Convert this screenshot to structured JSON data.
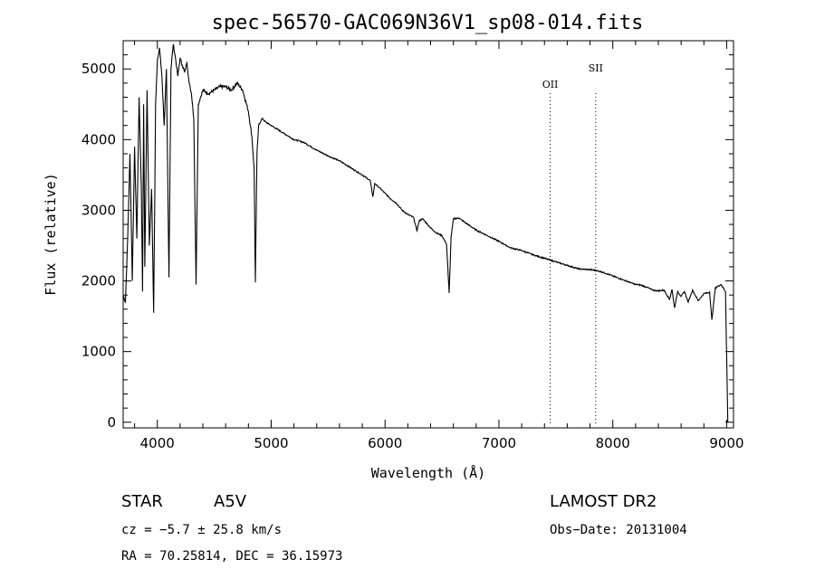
{
  "chart_data": {
    "type": "line",
    "title": "spec-56570-GAC069N36V1_sp08-014.fits",
    "xlabel": "Wavelength (Å)",
    "ylabel": "Flux (relative)",
    "xlim": [
      3700,
      9060
    ],
    "ylim": [
      -80,
      5400
    ],
    "xticks": [
      4000,
      5000,
      6000,
      7000,
      8000,
      9000
    ],
    "yticks": [
      0,
      1000,
      2000,
      3000,
      4000,
      5000
    ],
    "grid": false,
    "series": [
      {
        "x": [
          3700,
          3720,
          3740,
          3760,
          3780,
          3800,
          3820,
          3840,
          3860,
          3870,
          3880,
          3890,
          3910,
          3930,
          3950,
          3968,
          3985,
          4000,
          4020,
          4040,
          4060,
          4080,
          4102,
          4120,
          4140,
          4160,
          4180,
          4200,
          4220,
          4240,
          4260,
          4280,
          4300,
          4320,
          4340,
          4360,
          4380,
          4400,
          4450,
          4500,
          4550,
          4600,
          4650,
          4700,
          4750,
          4800,
          4830,
          4850,
          4861,
          4875,
          4890,
          4920,
          4950,
          5000,
          5050,
          5100,
          5150,
          5200,
          5250,
          5300,
          5400,
          5500,
          5600,
          5700,
          5800,
          5870,
          5893,
          5910,
          5950,
          6000,
          6050,
          6100,
          6150,
          6200,
          6250,
          6280,
          6300,
          6330,
          6400,
          6450,
          6500,
          6540,
          6563,
          6580,
          6600,
          6650,
          6700,
          6800,
          6900,
          7000,
          7100,
          7200,
          7300,
          7400,
          7500,
          7600,
          7700,
          7800,
          7850,
          7900,
          8000,
          8100,
          8200,
          8250,
          8300,
          8350,
          8400,
          8450,
          8498,
          8520,
          8542,
          8570,
          8600,
          8630,
          8662,
          8700,
          8750,
          8800,
          8850,
          8870,
          8900,
          8950,
          8990,
          9000,
          9010
        ],
        "y": [
          1800,
          1700,
          2600,
          3800,
          2000,
          3900,
          2600,
          4600,
          3300,
          1850,
          4500,
          2200,
          4700,
          2500,
          3300,
          1550,
          4500,
          5100,
          5300,
          4900,
          4200,
          5000,
          2050,
          5000,
          5350,
          5150,
          4900,
          5150,
          5050,
          4950,
          5100,
          4800,
          4650,
          4300,
          1950,
          4500,
          4600,
          4700,
          4650,
          4700,
          4750,
          4750,
          4700,
          4800,
          4700,
          4400,
          4050,
          3600,
          1980,
          3800,
          4200,
          4300,
          4250,
          4200,
          4150,
          4100,
          4050,
          4000,
          3980,
          3950,
          3850,
          3770,
          3700,
          3600,
          3500,
          3420,
          3190,
          3380,
          3320,
          3240,
          3160,
          3100,
          3000,
          2940,
          2900,
          2710,
          2850,
          2880,
          2750,
          2680,
          2640,
          2520,
          1830,
          2620,
          2880,
          2890,
          2830,
          2720,
          2640,
          2560,
          2470,
          2430,
          2370,
          2320,
          2270,
          2220,
          2170,
          2160,
          2150,
          2130,
          2070,
          2010,
          1950,
          1940,
          1910,
          1870,
          1860,
          1870,
          1740,
          1880,
          1620,
          1850,
          1780,
          1850,
          1700,
          1870,
          1720,
          1820,
          1840,
          1450,
          1900,
          1950,
          1850,
          900,
          0
        ]
      }
    ],
    "annotations": [
      {
        "label": "OII",
        "x": 7450
      },
      {
        "label": "SII",
        "x": 7850
      }
    ]
  },
  "info": {
    "object_class": "STAR",
    "subclass": "A5V",
    "cz": "cz = −5.7 ± 25.8 km/s",
    "coords": "RA =  70.25814, DEC =  36.15973",
    "survey": "LAMOST DR2",
    "obs_date": "Obs−Date: 20131004"
  }
}
